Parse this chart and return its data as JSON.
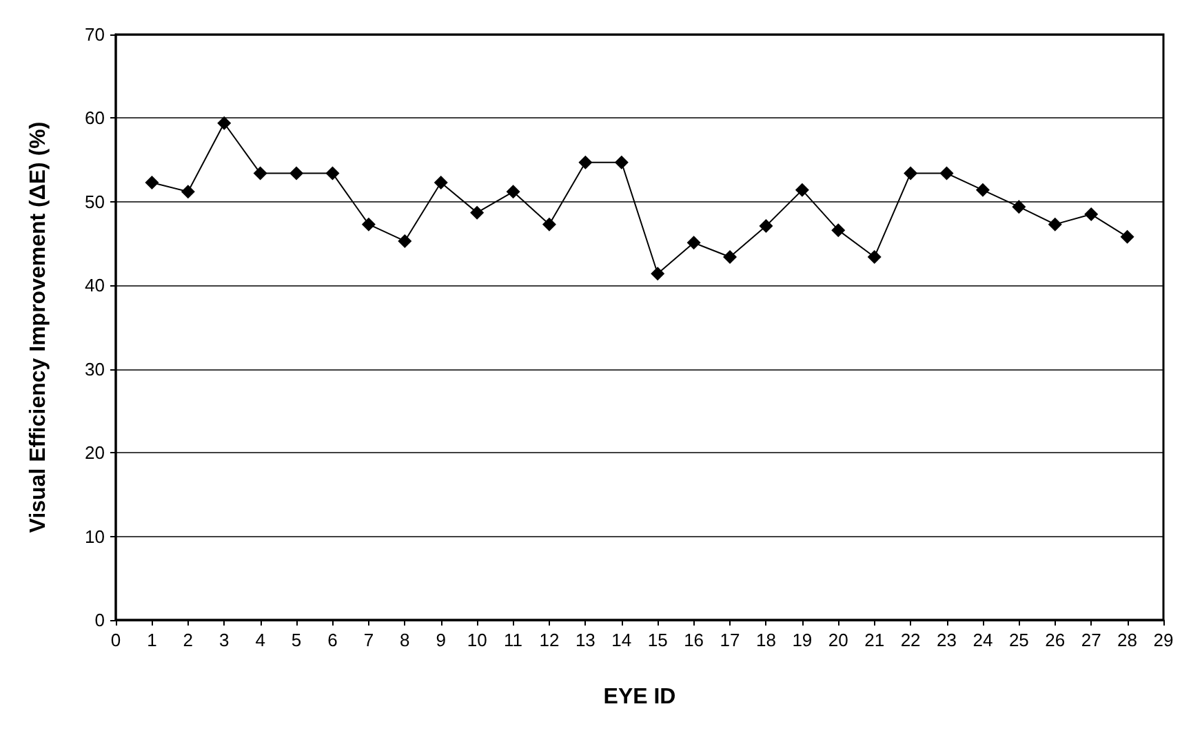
{
  "chart_data": {
    "type": "line",
    "xlabel": "EYE ID",
    "ylabel": "Visual Efficiency Improvement (ΔE) (%)",
    "x": [
      1,
      2,
      3,
      4,
      5,
      6,
      7,
      8,
      9,
      10,
      11,
      12,
      13,
      14,
      15,
      16,
      17,
      18,
      19,
      20,
      21,
      22,
      23,
      24,
      25,
      26,
      27,
      28
    ],
    "series": [
      {
        "color": "#000000",
        "values": [
          52.3,
          51.2,
          59.4,
          53.4,
          53.4,
          53.4,
          47.3,
          45.3,
          52.3,
          48.7,
          51.2,
          47.3,
          54.7,
          54.7,
          41.4,
          45.1,
          43.4,
          47.1,
          51.4,
          46.6,
          43.4,
          53.4,
          53.4,
          51.4,
          49.4,
          47.3,
          48.5,
          45.8
        ]
      }
    ],
    "xlim": [
      0,
      29
    ],
    "xticks": [
      0,
      1,
      2,
      3,
      4,
      5,
      6,
      7,
      8,
      9,
      10,
      11,
      12,
      13,
      14,
      15,
      16,
      17,
      18,
      19,
      20,
      21,
      22,
      23,
      24,
      25,
      26,
      27,
      28,
      29
    ],
    "ylim": [
      0,
      70
    ],
    "yticks": [
      0,
      10,
      20,
      30,
      40,
      50,
      60,
      70
    ],
    "grid": "y",
    "marker": "diamond",
    "line_style": "solid"
  }
}
